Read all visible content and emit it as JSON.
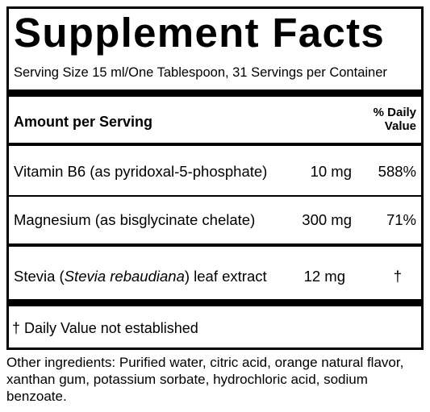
{
  "title": "Supplement Facts",
  "serving_size": "Serving Size 15 ml/One Tablespoon, 31 Servings per Container",
  "header": {
    "amount": "Amount per Serving",
    "daily_value": [
      "% Daily",
      "Value"
    ]
  },
  "rows": [
    {
      "name": "Vitamin B6 (as pyridoxal-5-phosphate)",
      "amount": "10 mg",
      "dv": "588%"
    },
    {
      "name": "Magnesium (as bisglycinate chelate)",
      "amount": "300 mg",
      "dv": "71%"
    },
    {
      "name": [
        "Stevia (",
        "Stevia rebaudiana",
        ") leaf extract"
      ],
      "amount": "12 mg",
      "dv": "†"
    }
  ],
  "footnote": "† Daily Value not established",
  "other_ingredients": "Other ingredients: Purified water, citric acid, orange natural flavor, xanthan gum, potassium sorbate, hydrochloric acid, sodium benzoate."
}
